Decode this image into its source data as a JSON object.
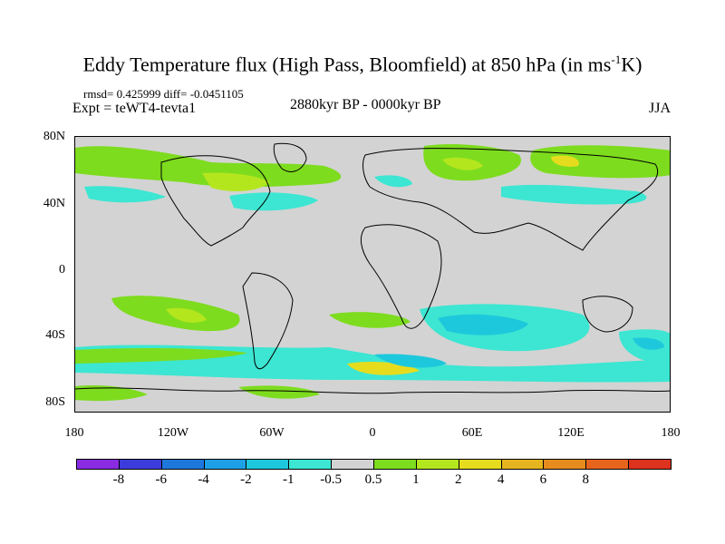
{
  "title": {
    "main": "Eddy Temperature flux (High Pass, Bloomfield) at 850 hPa (in ms",
    "sup": "-1",
    "end": "K)"
  },
  "subtitle": {
    "stats": "rmsd= 0.425999 diff= -0.0451105",
    "experiment": "Expt = teWT4-tevta1",
    "center": "2880kyr BP - 0000kyr BP",
    "season": "JJA"
  },
  "axes": {
    "y_ticks": [
      "80N",
      "40N",
      "0",
      "40S",
      "80S"
    ],
    "x_ticks": [
      "180",
      "120W",
      "60W",
      "0",
      "60E",
      "120E",
      "180"
    ]
  },
  "colorbar": {
    "labels": [
      "-8",
      "-6",
      "-4",
      "-2",
      "-1",
      "-0.5",
      "0.5",
      "1",
      "2",
      "4",
      "6",
      "8"
    ],
    "colors": [
      "#8a2be2",
      "#3c3cdc",
      "#1e78dc",
      "#1ea0e6",
      "#1ec8dc",
      "#3ce6d2",
      "#d3d3d3",
      "#7ddc1e",
      "#b4e61e",
      "#e6dc1e",
      "#e6b41e",
      "#e68c1e",
      "#e6641e",
      "#dc321e"
    ]
  },
  "palette": {
    "gray": "#d3d3d3",
    "cyan": "#3ce6d2",
    "light_blue": "#1ec8dc",
    "green": "#7ddc1e",
    "yellow_green": "#b4e61e",
    "yellow": "#e6dc1e"
  }
}
